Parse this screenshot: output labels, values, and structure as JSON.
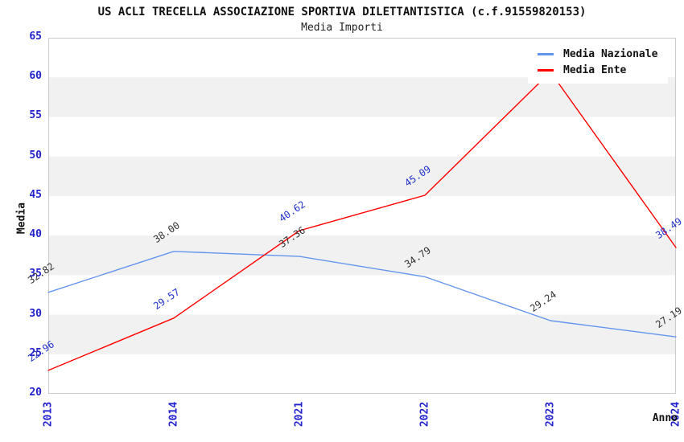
{
  "chart_data": {
    "type": "line",
    "title": "US ACLI TRECELLA ASSOCIAZIONE SPORTIVA DILETTANTISTICA (c.f.91559820153)",
    "subtitle": "Media Importi",
    "categories": [
      "2013",
      "2014",
      "2021",
      "2022",
      "2023",
      "2024"
    ],
    "series": [
      {
        "name": "Media Nazionale",
        "color": "#6495ED",
        "label_color": "#333333",
        "values": [
          32.82,
          38.0,
          37.36,
          34.79,
          29.24,
          27.19
        ],
        "point_labels": [
          "32.82",
          "38.00",
          "37.36",
          "34.79",
          "29.24",
          "27.19"
        ]
      },
      {
        "name": "Media Ente",
        "color": "#FF0000",
        "label_color": "#2233CC",
        "values": [
          22.96,
          29.57,
          40.62,
          45.09,
          60.68,
          38.49
        ],
        "point_labels": [
          "22.96",
          "29.57",
          "40.62",
          "45.09",
          "",
          "38.49"
        ],
        "note": "2023 value estimated from line apex; its point label is hidden behind the legend box"
      }
    ],
    "xlabel": "Anno",
    "ylabel": "Media",
    "ylim": [
      20,
      65
    ],
    "ytick_step": 5,
    "yticks": [
      20,
      25,
      30,
      35,
      40,
      45,
      50,
      55,
      60,
      65
    ],
    "legend_position": "top-right",
    "grid": "alternating horizontal bands (white / light gray) every 5 units, no vertical gridlines"
  },
  "colors": {
    "axis_tick_text": "#2222CC",
    "band_gray": "#F1F1F1",
    "frame_border": "#CCCCCC",
    "background": "#FFFFFF",
    "legend_background": "#FFFFFF",
    "title_text": "#111111"
  }
}
